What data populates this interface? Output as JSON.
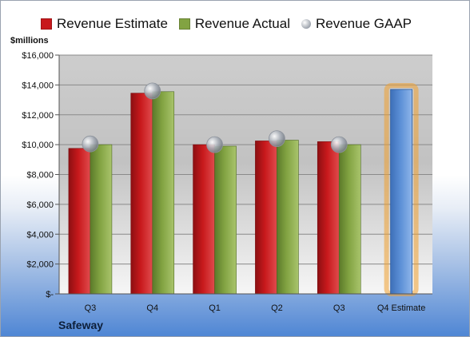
{
  "legend": {
    "estimate": "Revenue Estimate",
    "actual": "Revenue Actual",
    "gaap": "Revenue GAAP"
  },
  "units": "$millions",
  "company": "Safeway",
  "colors": {
    "estimate": "#c8191c",
    "actual": "#82a342",
    "gaap": "#a7adb6",
    "forecast": "#5b8fd6",
    "forecast_glow": "#f0a030"
  },
  "chart_data": {
    "type": "bar",
    "categories": [
      "Q3",
      "Q4",
      "Q1",
      "Q2",
      "Q3",
      "Q4 Estimate"
    ],
    "series": [
      {
        "name": "Revenue Estimate",
        "values": [
          9750,
          13450,
          10000,
          10250,
          10200,
          null
        ]
      },
      {
        "name": "Revenue Actual",
        "values": [
          10000,
          13550,
          9900,
          10300,
          10000,
          null
        ]
      },
      {
        "name": "Revenue GAAP",
        "values": [
          10050,
          13600,
          10000,
          10400,
          10000,
          null
        ]
      }
    ],
    "forecast": {
      "category": "Q4 Estimate",
      "value": 13700
    },
    "ylim": [
      0,
      16000
    ],
    "yticks": [
      0,
      2000,
      4000,
      6000,
      8000,
      10000,
      12000,
      14000,
      16000
    ],
    "ytick_labels": [
      "$-",
      "$2,000",
      "$4,000",
      "$6,000",
      "$8,000",
      "$10,000",
      "$12,000",
      "$14,000",
      "$16,000"
    ],
    "grid": true,
    "legend_position": "top"
  }
}
